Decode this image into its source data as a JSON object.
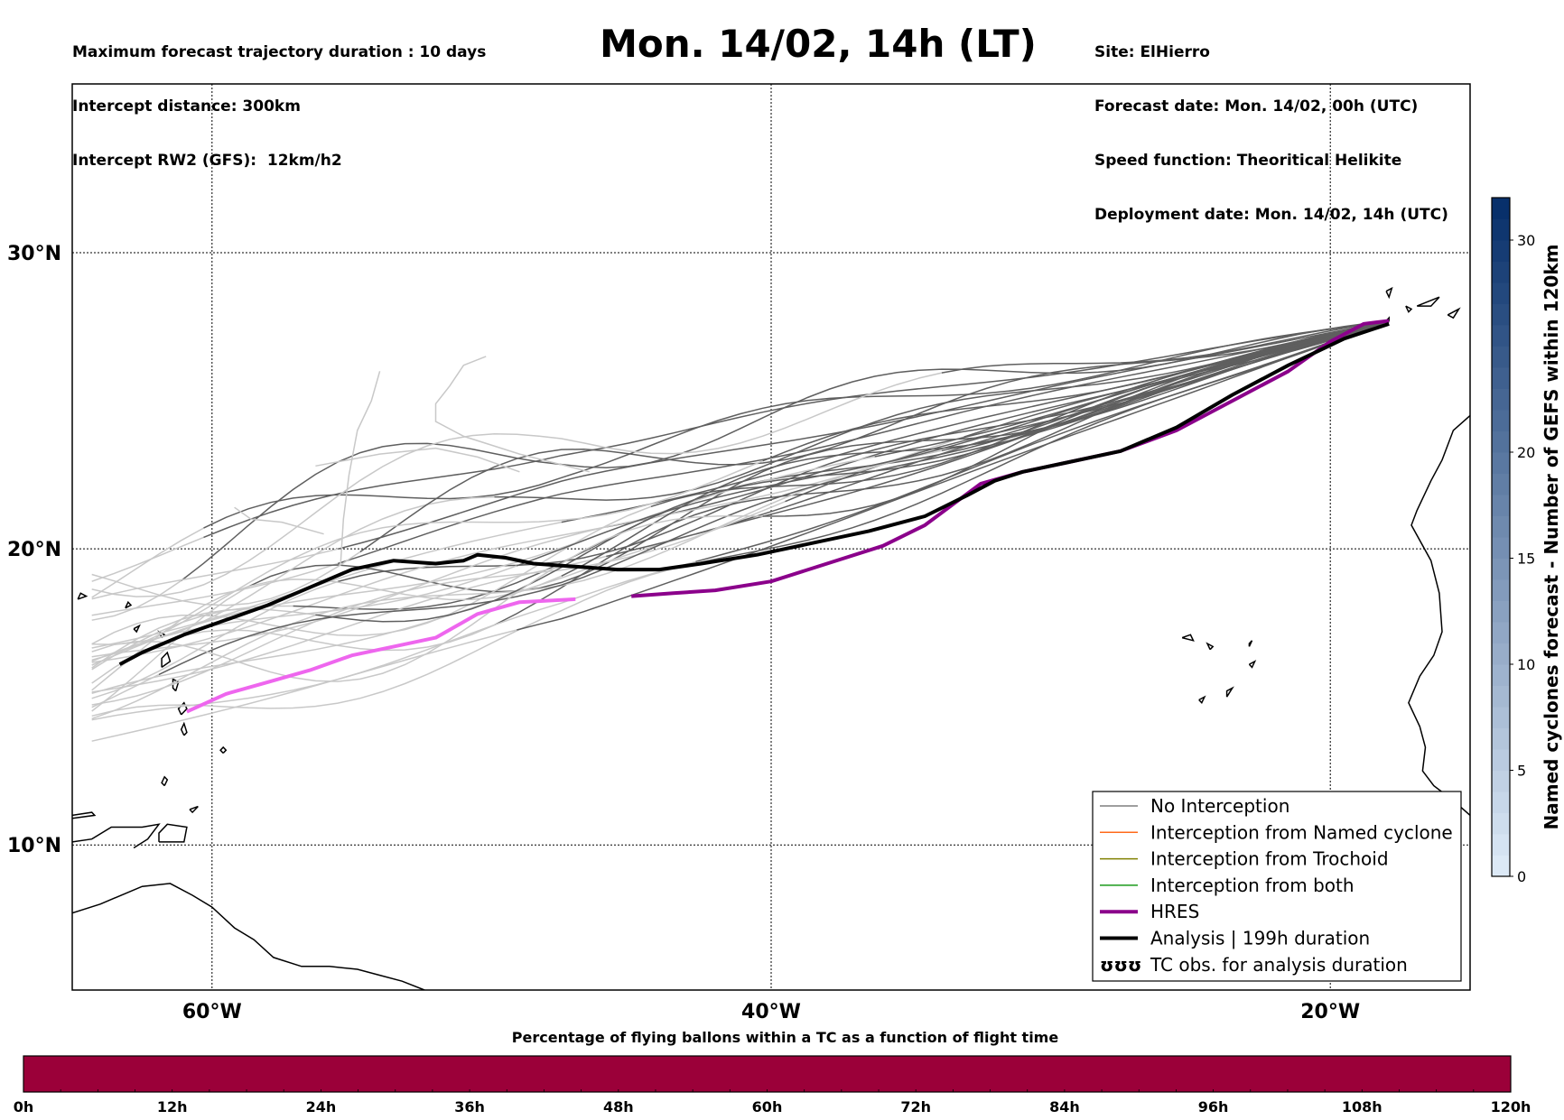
{
  "header": {
    "left_lines": [
      "Maximum forecast trajectory duration : 10 days",
      "Intercept distance: 300km",
      "Intercept RW2 (GFS):  12km/h2"
    ],
    "title": "Mon. 14/02, 14h (LT)",
    "right_lines": [
      "Site: ElHierro",
      "Forecast date: Mon. 14/02, 00h (UTC)",
      "Speed function: Theoritical Helikite",
      "Deployment date: Mon. 14/02, 14h (UTC)"
    ]
  },
  "map": {
    "lat_labels": [
      {
        "lat": 30,
        "label": "30°N"
      },
      {
        "lat": 20,
        "label": "20°N"
      },
      {
        "lat": 10,
        "label": "10°N"
      }
    ],
    "lon_labels": [
      {
        "lon": -60,
        "label": "60°W"
      },
      {
        "lon": -40,
        "label": "40°W"
      },
      {
        "lon": -20,
        "label": "20°W"
      }
    ],
    "extent": {
      "lon_min": -65,
      "lon_max": -15,
      "lat_min": 5.1,
      "lat_max": 35.7
    },
    "trajectories": {
      "colors": {
        "no_interception": "#5f5f5f",
        "no_interception_late": "#c8c8c8",
        "hres_early": "#8b008b",
        "hres_late": "#ee66ee",
        "analysis": "#000000"
      },
      "analysis": [
        [
          -17.9,
          27.6
        ],
        [
          -19.5,
          27.1
        ],
        [
          -21.5,
          26.2
        ],
        [
          -23.5,
          25.2
        ],
        [
          -25.5,
          24.1
        ],
        [
          -27.5,
          23.3
        ],
        [
          -29.5,
          22.9
        ],
        [
          -31,
          22.6
        ],
        [
          -32,
          22.3
        ],
        [
          -33,
          21.8
        ],
        [
          -34.5,
          21.1
        ],
        [
          -36.5,
          20.6
        ],
        [
          -38.5,
          20.2
        ],
        [
          -40.5,
          19.8
        ],
        [
          -42.5,
          19.5
        ],
        [
          -44,
          19.3
        ],
        [
          -45.5,
          19.3
        ],
        [
          -47,
          19.4
        ],
        [
          -48.5,
          19.5
        ],
        [
          -49.5,
          19.7
        ],
        [
          -50.5,
          19.8
        ],
        [
          -51,
          19.6
        ],
        [
          -52,
          19.5
        ],
        [
          -53.5,
          19.6
        ],
        [
          -55,
          19.3
        ],
        [
          -56.5,
          18.7
        ],
        [
          -58,
          18.1
        ],
        [
          -59.5,
          17.6
        ],
        [
          -61,
          17.1
        ],
        [
          -62.5,
          16.5
        ],
        [
          -63.3,
          16.1
        ]
      ],
      "hres": [
        [
          -17.9,
          27.7
        ],
        [
          -18.8,
          27.6
        ],
        [
          -20,
          27.0
        ],
        [
          -21.5,
          26.0
        ],
        [
          -23.5,
          25.0
        ],
        [
          -25.5,
          24.0
        ],
        [
          -27.5,
          23.3
        ],
        [
          -29.5,
          22.9
        ],
        [
          -31,
          22.6
        ],
        [
          -32.5,
          22.2
        ],
        [
          -33.5,
          21.5
        ],
        [
          -34.5,
          20.8
        ],
        [
          -36,
          20.1
        ],
        [
          -38,
          19.5
        ],
        [
          -40,
          18.9
        ],
        [
          -42,
          18.6
        ],
        [
          -43.5,
          18.5
        ],
        [
          -45,
          18.4
        ],
        [
          -47,
          18.3
        ],
        [
          -49,
          18.2
        ],
        [
          -50.5,
          17.8
        ],
        [
          -52,
          17.0
        ],
        [
          -53.5,
          16.7
        ],
        [
          -55,
          16.4
        ],
        [
          -56.5,
          15.9
        ],
        [
          -58,
          15.5
        ],
        [
          -59.5,
          15.1
        ],
        [
          -60.9,
          14.5
        ]
      ],
      "hres_split_lon": -45.5,
      "ensemble_count": 30,
      "analysis_duration_label": "Analysis | 199h duration"
    }
  },
  "legend": {
    "items": [
      {
        "label": "No Interception",
        "color": "#7f7f7f",
        "width": 1.5,
        "kind": "line"
      },
      {
        "label": "Interception from Named cyclone",
        "color": "#ff6a1a",
        "width": 1.5,
        "kind": "line"
      },
      {
        "label": "Interception from Trochoid",
        "color": "#808000",
        "width": 1.5,
        "kind": "line"
      },
      {
        "label": "Interception from both",
        "color": "#1a9a1a",
        "width": 1.5,
        "kind": "line"
      },
      {
        "label": "HRES",
        "color": "#8b008b",
        "width": 4,
        "kind": "line"
      },
      {
        "label": "Analysis | 199h duration",
        "color": "#000000",
        "width": 4,
        "kind": "line"
      },
      {
        "label": "TC obs. for analysis duration",
        "color": "#000000",
        "width": 0,
        "kind": "symbol",
        "symbol": "ʊʊʊ"
      }
    ]
  },
  "colorbar_right": {
    "title": "Named cyclones forecast - Number of GEFS within 120km",
    "min": 0,
    "max": 32,
    "ticks": [
      0,
      5,
      10,
      15,
      20,
      30
    ],
    "color_low": "#dce9f6",
    "color_high": "#08306b"
  },
  "bottom_bar": {
    "title": "Percentage of flying ballons within a TC as a function of flight time",
    "color": "#9b0039",
    "ticks": [
      "0h",
      "12h",
      "24h",
      "36h",
      "48h",
      "60h",
      "72h",
      "84h",
      "96h",
      "108h",
      "120h"
    ]
  }
}
